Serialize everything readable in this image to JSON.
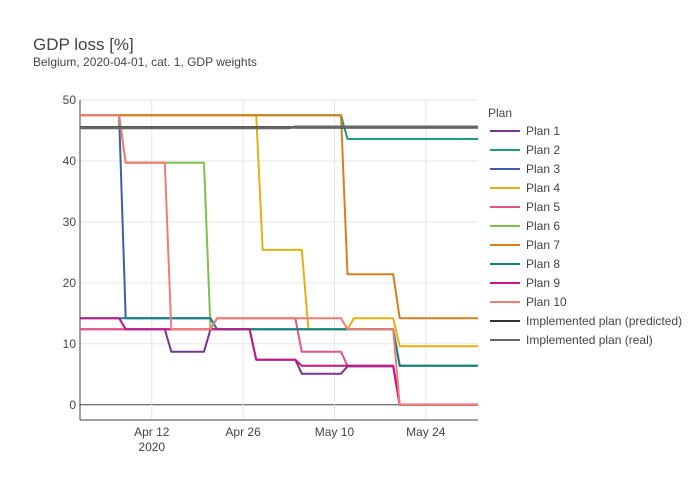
{
  "chart_data": {
    "type": "line",
    "title": "GDP loss [%]",
    "subtitle": "Belgium, 2020-04-01, cat. 1, GDP weights",
    "xlabel": "",
    "ylabel": "",
    "xlim": [
      "2020-04-01",
      "2020-06-01"
    ],
    "ylim": [
      -2.5,
      50
    ],
    "grid": true,
    "x_ticks": [
      {
        "date": "2020-04-12",
        "label": "Apr 12",
        "sublabel": "2020"
      },
      {
        "date": "2020-04-26",
        "label": "Apr 26",
        "sublabel": ""
      },
      {
        "date": "2020-05-10",
        "label": "May 10",
        "sublabel": ""
      },
      {
        "date": "2020-05-24",
        "label": "May 24",
        "sublabel": ""
      }
    ],
    "y_ticks": [
      0,
      10,
      20,
      30,
      40,
      50
    ],
    "legend_title": "Plan",
    "legend_position": "right",
    "series": [
      {
        "name": "Plan 1",
        "color": "#7b3294",
        "points": [
          [
            "2020-04-01",
            12.4
          ],
          [
            "2020-04-14",
            12.4
          ],
          [
            "2020-04-15",
            8.7
          ],
          [
            "2020-04-20",
            8.7
          ],
          [
            "2020-04-21",
            12.4
          ],
          [
            "2020-04-27",
            12.4
          ],
          [
            "2020-04-28",
            7.4
          ],
          [
            "2020-05-04",
            7.4
          ],
          [
            "2020-05-05",
            5.1
          ],
          [
            "2020-05-11",
            5.1
          ],
          [
            "2020-05-12",
            6.3
          ],
          [
            "2020-05-19",
            6.3
          ],
          [
            "2020-05-20",
            0
          ],
          [
            "2020-06-01",
            0
          ]
        ]
      },
      {
        "name": "Plan 2",
        "color": "#1b9e77",
        "points": [
          [
            "2020-04-01",
            47.5
          ],
          [
            "2020-05-11",
            47.5
          ],
          [
            "2020-05-12",
            43.6
          ],
          [
            "2020-06-01",
            43.6
          ]
        ]
      },
      {
        "name": "Plan 3",
        "color": "#3a5fa8",
        "points": [
          [
            "2020-04-01",
            47.5
          ],
          [
            "2020-04-07",
            47.5
          ],
          [
            "2020-04-08",
            14.2
          ],
          [
            "2020-04-21",
            14.2
          ],
          [
            "2020-04-22",
            12.4
          ],
          [
            "2020-05-19",
            12.4
          ],
          [
            "2020-05-20",
            6.4
          ],
          [
            "2020-06-01",
            6.4
          ]
        ]
      },
      {
        "name": "Plan 4",
        "color": "#e6b010",
        "points": [
          [
            "2020-04-01",
            47.5
          ],
          [
            "2020-04-28",
            47.5
          ],
          [
            "2020-04-29",
            25.4
          ],
          [
            "2020-05-05",
            25.4
          ],
          [
            "2020-05-06",
            12.4
          ],
          [
            "2020-05-12",
            12.4
          ],
          [
            "2020-05-13",
            14.2
          ],
          [
            "2020-05-19",
            14.2
          ],
          [
            "2020-05-20",
            9.6
          ],
          [
            "2020-06-01",
            9.6
          ]
        ]
      },
      {
        "name": "Plan 5",
        "color": "#e7508a",
        "points": [
          [
            "2020-04-01",
            12.4
          ],
          [
            "2020-04-21",
            12.4
          ],
          [
            "2020-04-22",
            14.2
          ],
          [
            "2020-05-04",
            14.2
          ],
          [
            "2020-05-05",
            8.7
          ],
          [
            "2020-05-11",
            8.7
          ],
          [
            "2020-05-12",
            6.4
          ],
          [
            "2020-05-19",
            6.4
          ],
          [
            "2020-05-20",
            0
          ],
          [
            "2020-06-01",
            0
          ]
        ]
      },
      {
        "name": "Plan 6",
        "color": "#7fbf4d",
        "points": [
          [
            "2020-04-01",
            47.5
          ],
          [
            "2020-04-07",
            47.5
          ],
          [
            "2020-04-08",
            39.7
          ],
          [
            "2020-04-20",
            39.7
          ],
          [
            "2020-04-21",
            12.4
          ],
          [
            "2020-05-19",
            12.4
          ],
          [
            "2020-05-20",
            6.4
          ],
          [
            "2020-06-01",
            6.4
          ]
        ]
      },
      {
        "name": "Plan 7",
        "color": "#d87e1a",
        "points": [
          [
            "2020-04-01",
            47.5
          ],
          [
            "2020-05-11",
            47.5
          ],
          [
            "2020-05-12",
            21.4
          ],
          [
            "2020-05-19",
            21.4
          ],
          [
            "2020-05-20",
            14.2
          ],
          [
            "2020-06-01",
            14.2
          ]
        ]
      },
      {
        "name": "Plan 8",
        "color": "#138085",
        "points": [
          [
            "2020-04-01",
            14.2
          ],
          [
            "2020-04-21",
            14.2
          ],
          [
            "2020-04-22",
            12.4
          ],
          [
            "2020-05-19",
            12.4
          ],
          [
            "2020-05-20",
            6.4
          ],
          [
            "2020-06-01",
            6.4
          ]
        ]
      },
      {
        "name": "Plan 9",
        "color": "#c0168a",
        "points": [
          [
            "2020-04-01",
            14.2
          ],
          [
            "2020-04-07",
            14.2
          ],
          [
            "2020-04-08",
            12.4
          ],
          [
            "2020-04-27",
            12.4
          ],
          [
            "2020-04-28",
            7.4
          ],
          [
            "2020-05-04",
            7.4
          ],
          [
            "2020-05-05",
            6.4
          ],
          [
            "2020-05-19",
            6.4
          ],
          [
            "2020-05-20",
            0
          ],
          [
            "2020-06-01",
            0
          ]
        ]
      },
      {
        "name": "Plan 10",
        "color": "#f07c72",
        "points": [
          [
            "2020-04-01",
            47.5
          ],
          [
            "2020-04-07",
            47.5
          ],
          [
            "2020-04-08",
            39.7
          ],
          [
            "2020-04-14",
            39.7
          ],
          [
            "2020-04-15",
            12.4
          ],
          [
            "2020-04-21",
            12.4
          ],
          [
            "2020-04-22",
            14.2
          ],
          [
            "2020-05-11",
            14.2
          ],
          [
            "2020-05-12",
            12.4
          ],
          [
            "2020-05-19",
            12.4
          ],
          [
            "2020-05-20",
            0
          ],
          [
            "2020-06-01",
            0
          ]
        ]
      },
      {
        "name": "Implemented plan (predicted)",
        "color": "#333333",
        "points": [
          [
            "2020-04-01",
            45.5
          ],
          [
            "2020-06-01",
            45.5
          ]
        ]
      },
      {
        "name": "Implemented plan (real)",
        "color": "#666666",
        "points": [
          [
            "2020-04-01",
            45.4
          ],
          [
            "2020-05-03",
            45.4
          ],
          [
            "2020-05-04",
            45.6
          ],
          [
            "2020-06-01",
            45.6
          ]
        ]
      }
    ]
  }
}
